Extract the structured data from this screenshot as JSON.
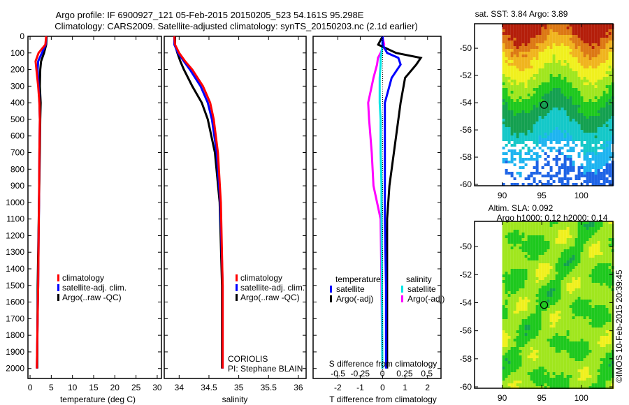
{
  "title": {
    "line1": "Argo profile: IF 6900927_121 05-Feb-2015 20150205_523 54.161S 95.298E",
    "line2": "Climatology: CARS2009. Satellite-adjusted climatology: synTS_20150203.nc (2.1d earlier)"
  },
  "colors": {
    "climatology": "#ff0000",
    "satellite": "#0000ff",
    "argo": "#000000",
    "s_satellite": "#00e5e5",
    "s_argo": "#ff00ff"
  },
  "chart_data": [
    {
      "type": "line",
      "xlabel": "temperature (deg C)",
      "ylabel": "",
      "xlim": [
        -0.5,
        31
      ],
      "ylim": [
        2060,
        0
      ],
      "xticks": [
        "0",
        "5",
        "10",
        "15",
        "20",
        "25",
        "30"
      ],
      "xtick_values": [
        0,
        5,
        10,
        15,
        20,
        25,
        30
      ],
      "yticks": [
        "0",
        "100",
        "200",
        "300",
        "400",
        "500",
        "600",
        "700",
        "800",
        "900",
        "1000",
        "1100",
        "1200",
        "1300",
        "1400",
        "1500",
        "1600",
        "1700",
        "1800",
        "1900",
        "2000"
      ],
      "depth": [
        0,
        50,
        100,
        150,
        200,
        300,
        400,
        500,
        700,
        1000,
        1500,
        2000
      ],
      "series": [
        {
          "name": "climatology",
          "values": [
            3.8,
            3.6,
            2.0,
            1.3,
            1.5,
            1.9,
            2.2,
            2.3,
            2.2,
            2.1,
            1.9,
            1.6
          ]
        },
        {
          "name": "satellite-adj. clim.",
          "values": [
            3.8,
            3.7,
            2.8,
            1.9,
            1.8,
            2.0,
            2.2,
            2.3,
            2.2,
            2.1,
            1.9,
            1.6
          ]
        },
        {
          "name": "Argo(..raw -QC)",
          "values": [
            3.9,
            3.8,
            3.3,
            2.6,
            2.4,
            2.3,
            2.5,
            2.4,
            2.3,
            2.1,
            1.8,
            1.7
          ]
        }
      ],
      "legend": "center"
    },
    {
      "type": "line",
      "xlabel": "salinity",
      "xlim": [
        33.75,
        36.13
      ],
      "ylim": [
        2060,
        0
      ],
      "xticks": [
        "34",
        "34.5",
        "35",
        "35.5",
        "36"
      ],
      "xtick_values": [
        34,
        34.5,
        35,
        35.5,
        36
      ],
      "depth": [
        0,
        50,
        100,
        150,
        200,
        300,
        400,
        500,
        700,
        1000,
        1500,
        2000
      ],
      "series": [
        {
          "name": "climatology",
          "values": [
            33.92,
            33.93,
            34.0,
            34.1,
            34.22,
            34.4,
            34.52,
            34.58,
            34.65,
            34.7,
            34.73,
            34.73
          ]
        },
        {
          "name": "satellite-adj. clim.",
          "values": [
            33.92,
            33.92,
            33.98,
            34.08,
            34.18,
            34.36,
            34.48,
            34.55,
            34.63,
            34.69,
            34.73,
            34.73
          ]
        },
        {
          "name": "Argo(..raw -QC)",
          "values": [
            33.93,
            33.93,
            33.97,
            34.02,
            34.08,
            34.22,
            34.38,
            34.48,
            34.6,
            34.68,
            34.72,
            34.72
          ]
        }
      ],
      "legend": "center",
      "annotation": [
        "CORIOLIS",
        "PI: Stephane BLAIN"
      ]
    },
    {
      "type": "line",
      "xlabel": "T difference from climatology",
      "xlabel2": "S difference from climatology",
      "xlim": [
        -3.1,
        2.6
      ],
      "ylim": [
        2060,
        0
      ],
      "xticks": [
        "-2",
        "-1",
        "0",
        "1",
        "2"
      ],
      "xtick_values": [
        -2,
        -1,
        0,
        1,
        2
      ],
      "s_xlim": [
        -0.78,
        0.66
      ],
      "s_xticks": [
        "-0.5",
        "-0.25",
        "0",
        "0.25",
        "0.5"
      ],
      "s_xtick_values": [
        -0.5,
        -0.25,
        0,
        0.25,
        0.5
      ],
      "depth": [
        0,
        50,
        100,
        130,
        170,
        250,
        400,
        500,
        700,
        900,
        1100,
        1500,
        2000
      ],
      "series": [
        {
          "name": "temperature satellite",
          "axis": "T",
          "values": [
            0,
            0.0,
            0.2,
            0.7,
            0.8,
            0.4,
            0.1,
            0.1,
            0.1,
            0.1,
            0.1,
            0.15,
            0.15
          ]
        },
        {
          "name": "temperature Argo(-adj)",
          "axis": "T",
          "values": [
            0,
            -0.2,
            0.6,
            1.7,
            1.5,
            1.0,
            0.8,
            0.7,
            0.5,
            0.3,
            0.2,
            0.2,
            0.2
          ]
        },
        {
          "name": "salinity satellite",
          "axis": "S",
          "values": [
            0,
            0,
            -0.01,
            -0.02,
            -0.02,
            -0.03,
            -0.03,
            -0.02,
            -0.02,
            -0.01,
            -0.01,
            -0.005,
            0
          ]
        },
        {
          "name": "salinity Argo(-adj)",
          "axis": "S",
          "values": [
            0,
            0.02,
            -0.02,
            -0.05,
            -0.06,
            -0.1,
            -0.16,
            -0.15,
            -0.12,
            -0.1,
            -0.02,
            -0.01,
            0
          ]
        }
      ],
      "legend_headers": [
        "temperature",
        "salinity"
      ],
      "legend_labels": [
        "satellite",
        "Argo(-adj)",
        "satellite",
        "Argo(-adj)"
      ]
    },
    {
      "type": "heatmap",
      "title": "sat. SST: 3.84  Argo: 3.89",
      "xlim": [
        86.5,
        104
      ],
      "ylim": [
        -60.1,
        -48.2
      ],
      "xticks": [
        "90",
        "95",
        "100"
      ],
      "xtick_values": [
        90,
        95,
        100
      ],
      "yticks": [
        "-50",
        "-52",
        "-54",
        "-56",
        "-58",
        "-60"
      ],
      "ytick_values": [
        -50,
        -52,
        -54,
        -56,
        -58,
        -60
      ],
      "marker": {
        "lon": 95.3,
        "lat": -54.16
      }
    },
    {
      "type": "heatmap",
      "title": "Altim. SLA: 0.092",
      "subtitle": "Argo h1000: 0.12 h2000: 0.14",
      "xlim": [
        86.5,
        104
      ],
      "ylim": [
        -60.1,
        -48.2
      ],
      "xticks": [
        "90",
        "95",
        "100"
      ],
      "xtick_values": [
        90,
        95,
        100
      ],
      "yticks": [
        "-50",
        "-52",
        "-54",
        "-56",
        "-58",
        "-60"
      ],
      "ytick_values": [
        -50,
        -52,
        -54,
        -56,
        -58,
        -60
      ],
      "marker": {
        "lon": 95.3,
        "lat": -54.16
      }
    }
  ],
  "credit": "©IMOS 10-Feb-2015 20:39:45"
}
